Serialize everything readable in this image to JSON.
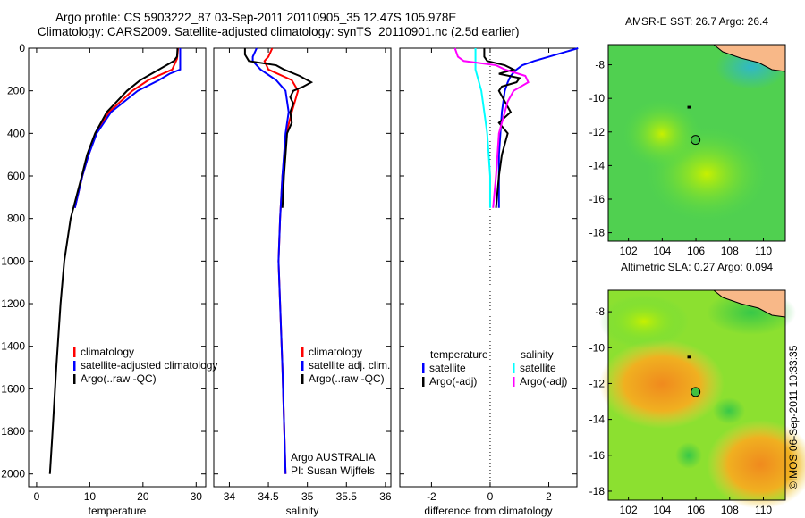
{
  "title_line1": "Argo profile: CS 5903222_87 03-Sep-2011 20110905_35 12.47S 105.978E",
  "title_line2": "Climatology: CARS2009. Satellite-adjusted climatology: synTS_20110901.nc (2.5d earlier)",
  "credit": "©IMOS 06-Sep-2011 10:33:35",
  "colors": {
    "red": "#ff0000",
    "blue": "#0000ff",
    "black": "#000000",
    "cyan": "#00ffff",
    "magenta": "#ff00ff"
  },
  "chart_data": [
    {
      "type": "line",
      "xlabel": "temperature",
      "ylabel": "",
      "xlim": [
        -1.5,
        31.8
      ],
      "ylim": [
        2060,
        0
      ],
      "xticks": [
        0,
        10,
        20,
        30
      ],
      "yticks": [
        0,
        200,
        400,
        600,
        800,
        1000,
        1200,
        1400,
        1600,
        1800,
        2000
      ],
      "legend": [
        "climatology",
        "satellite-adjusted climatology",
        "Argo(..raw -QC)"
      ],
      "series": [
        {
          "name": "climatology",
          "color": "#ff0000",
          "depth": [
            0,
            50,
            100,
            150,
            200,
            300,
            400,
            500,
            600,
            750
          ],
          "values": [
            26.6,
            26.4,
            25.5,
            21,
            18,
            13.6,
            11.2,
            9.8,
            8.6,
            7.2
          ]
        },
        {
          "name": "satellite-adjusted climatology",
          "color": "#0000ff",
          "depth": [
            0,
            50,
            100,
            120,
            150,
            200,
            300,
            400,
            500,
            600,
            750
          ],
          "values": [
            27,
            27,
            27,
            25,
            23,
            19,
            14,
            11.3,
            9.8,
            8.6,
            7.2
          ]
        },
        {
          "name": "Argo(..raw -QC)",
          "color": "#000000",
          "depth": [
            0,
            40,
            60,
            100,
            150,
            200,
            300,
            400,
            500,
            600,
            800,
            1000,
            1200,
            1500,
            1800,
            2000
          ],
          "values": [
            26.5,
            26.4,
            25.8,
            23,
            19.5,
            17,
            13.2,
            11,
            9.5,
            8.5,
            6.4,
            5.2,
            4.5,
            3.7,
            3,
            2.5
          ]
        }
      ]
    },
    {
      "type": "line",
      "xlabel": "salinity",
      "xlim": [
        33.8,
        36.07
      ],
      "ylim": [
        2060,
        0
      ],
      "xticks": [
        34,
        34.5,
        35,
        35.5,
        36
      ],
      "legend": [
        "climatology",
        "satellite adj. clim.",
        "Argo(..raw -QC)"
      ],
      "annotation": [
        "Argo AUSTRALIA",
        "PI: Susan Wijffels"
      ],
      "series": [
        {
          "name": "climatology",
          "color": "#ff0000",
          "depth": [
            0,
            40,
            60,
            100,
            150,
            200,
            300,
            400,
            600,
            800,
            1000,
            1500,
            2000
          ],
          "values": [
            34.55,
            34.5,
            34.45,
            34.5,
            34.8,
            34.88,
            34.8,
            34.73,
            34.68,
            34.65,
            34.63,
            34.68,
            34.72
          ]
        },
        {
          "name": "satellite adj. clim.",
          "color": "#0000ff",
          "depth": [
            0,
            40,
            60,
            100,
            150,
            200,
            300,
            400,
            600,
            800,
            1000,
            1500,
            2000
          ],
          "values": [
            34.35,
            34.3,
            34.3,
            34.4,
            34.6,
            34.72,
            34.76,
            34.72,
            34.68,
            34.65,
            34.63,
            34.68,
            34.72
          ]
        },
        {
          "name": "Argo(..raw -QC)",
          "color": "#000000",
          "depth": [
            0,
            30,
            60,
            80,
            100,
            130,
            160,
            180,
            200,
            230,
            260,
            300,
            350,
            400,
            500,
            600,
            750
          ],
          "values": [
            34.2,
            34.2,
            34.25,
            34.6,
            34.7,
            34.9,
            35.05,
            34.95,
            34.82,
            34.78,
            34.82,
            34.78,
            34.8,
            34.74,
            34.72,
            34.7,
            34.68
          ]
        }
      ]
    },
    {
      "type": "line",
      "xlabel": "difference from climatology",
      "xlim": [
        -3.08,
        2.96
      ],
      "ylim": [
        2060,
        0
      ],
      "xticks": [
        -2,
        0,
        2
      ],
      "legend_headers": [
        "temperature",
        "salinity"
      ],
      "legend": [
        "satellite",
        "Argo(-adj)",
        "satellite",
        "Argo(-adj)"
      ],
      "series": [
        {
          "name": "temperature satellite",
          "color": "#0000ff",
          "depth": [
            0,
            40,
            60,
            80,
            100,
            130,
            160,
            200,
            300,
            400,
            500,
            600,
            750
          ],
          "values": [
            3,
            2,
            1.5,
            1.1,
            0.9,
            0.7,
            0.6,
            0.5,
            0.4,
            0.35,
            0.3,
            0.3,
            0.3
          ]
        },
        {
          "name": "temperature Argo(-adj)",
          "color": "#000000",
          "depth": [
            0,
            40,
            60,
            80,
            100,
            120,
            140,
            160,
            180,
            200,
            250,
            300,
            350,
            400,
            500,
            600,
            750
          ],
          "values": [
            -0.2,
            -0.2,
            -0.1,
            0.5,
            0.8,
            0.3,
            1,
            0.9,
            0.4,
            0.3,
            0.5,
            0.7,
            0.3,
            0.6,
            0.4,
            0.3,
            0.2
          ]
        },
        {
          "name": "salinity satellite",
          "color": "#00ffff",
          "depth": [
            0,
            50,
            100,
            150,
            200,
            300,
            400,
            500,
            600,
            750
          ],
          "values": [
            -0.5,
            -0.5,
            -0.5,
            -0.4,
            -0.3,
            -0.2,
            -0.1,
            -0.05,
            0,
            0
          ]
        },
        {
          "name": "salinity Argo(-adj)",
          "color": "#ff00ff",
          "depth": [
            0,
            40,
            60,
            80,
            100,
            130,
            160,
            200,
            250,
            300,
            400,
            500,
            600,
            750
          ],
          "values": [
            -1.2,
            -1.1,
            -0.9,
            0.2,
            0.5,
            1.2,
            1.3,
            0.8,
            0.6,
            0.5,
            0.3,
            0.25,
            0.2,
            0.1
          ]
        }
      ]
    },
    {
      "type": "heatmap",
      "title": "AMSR-E SST: 26.7 Argo: 26.4",
      "xticks": [
        102,
        104,
        106,
        108,
        110
      ],
      "yticks": [
        -8,
        -10,
        -12,
        -14,
        -16,
        -18
      ],
      "xlim": [
        100.8,
        111.3
      ],
      "ylim": [
        -18.5,
        -6.8
      ],
      "argo_position": [
        105.978,
        -12.47
      ]
    },
    {
      "type": "heatmap",
      "title": "Altimetric SLA: 0.27 Argo: 0.094",
      "xticks": [
        102,
        104,
        106,
        108,
        110
      ],
      "yticks": [
        -8,
        -10,
        -12,
        -14,
        -16,
        -18
      ],
      "xlim": [
        100.8,
        111.3
      ],
      "ylim": [
        -18.5,
        -6.8
      ],
      "argo_position": [
        105.978,
        -12.47
      ]
    }
  ]
}
